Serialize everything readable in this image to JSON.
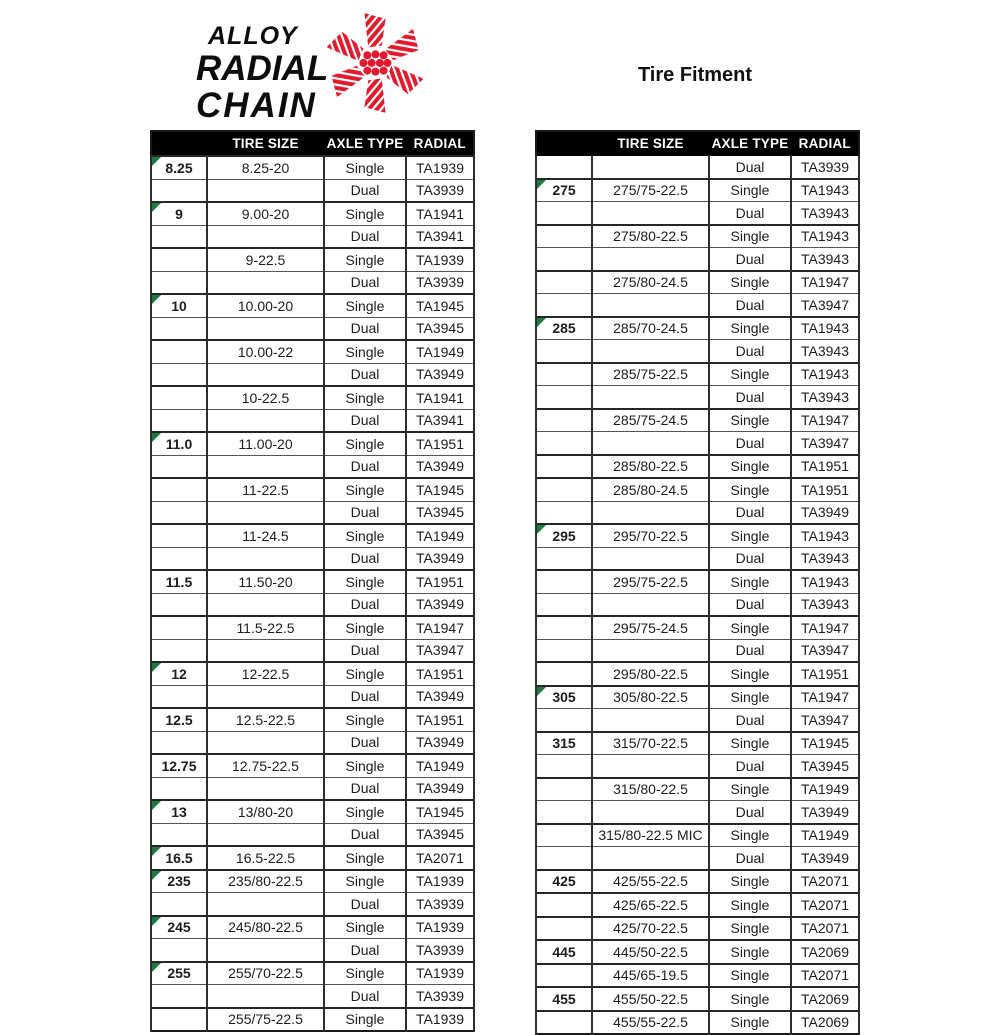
{
  "logo": {
    "line1": "ALLOY",
    "line2": "RADIAL",
    "line3": "CHAIN",
    "emblem": "chain-star-emblem"
  },
  "title": "Tire Fitment",
  "colors": {
    "header_bg": "#000000",
    "header_text": "#ffffff",
    "brand_red": "#e01b2e",
    "marker_green": "#1e7a40",
    "table_border": "#2e2e2e",
    "body_text": "#1c1c1c"
  },
  "tables": [
    {
      "id": "left",
      "headers": [
        "",
        "TIRE SIZE",
        "AXLE TYPE",
        "RADIAL"
      ],
      "rows": [
        {
          "group": "8.25",
          "tire_size": "8.25-20",
          "axle_type": "Single",
          "radial": "TA1939",
          "marker": true
        },
        {
          "group": "",
          "tire_size": "",
          "axle_type": "Dual",
          "radial": "TA3939",
          "marker": false
        },
        {
          "group": "9",
          "tire_size": "9.00-20",
          "axle_type": "Single",
          "radial": "TA1941",
          "marker": true
        },
        {
          "group": "",
          "tire_size": "",
          "axle_type": "Dual",
          "radial": "TA3941",
          "marker": false
        },
        {
          "group": "",
          "tire_size": "9-22.5",
          "axle_type": "Single",
          "radial": "TA1939",
          "marker": false
        },
        {
          "group": "",
          "tire_size": "",
          "axle_type": "Dual",
          "radial": "TA3939",
          "marker": false
        },
        {
          "group": "10",
          "tire_size": "10.00-20",
          "axle_type": "Single",
          "radial": "TA1945",
          "marker": true
        },
        {
          "group": "",
          "tire_size": "",
          "axle_type": "Dual",
          "radial": "TA3945",
          "marker": false
        },
        {
          "group": "",
          "tire_size": "10.00-22",
          "axle_type": "Single",
          "radial": "TA1949",
          "marker": false
        },
        {
          "group": "",
          "tire_size": "",
          "axle_type": "Dual",
          "radial": "TA3949",
          "marker": false
        },
        {
          "group": "",
          "tire_size": "10-22.5",
          "axle_type": "Single",
          "radial": "TA1941",
          "marker": false
        },
        {
          "group": "",
          "tire_size": "",
          "axle_type": "Dual",
          "radial": "TA3941",
          "marker": false
        },
        {
          "group": "11.0",
          "tire_size": "11.00-20",
          "axle_type": "Single",
          "radial": "TA1951",
          "marker": true
        },
        {
          "group": "",
          "tire_size": "",
          "axle_type": "Dual",
          "radial": "TA3949",
          "marker": false
        },
        {
          "group": "",
          "tire_size": "11-22.5",
          "axle_type": "Single",
          "radial": "TA1945",
          "marker": false
        },
        {
          "group": "",
          "tire_size": "",
          "axle_type": "Dual",
          "radial": "TA3945",
          "marker": false
        },
        {
          "group": "",
          "tire_size": "11-24.5",
          "axle_type": "Single",
          "radial": "TA1949",
          "marker": false
        },
        {
          "group": "",
          "tire_size": "",
          "axle_type": "Dual",
          "radial": "TA3949",
          "marker": false
        },
        {
          "group": "11.5",
          "tire_size": "11.50-20",
          "axle_type": "Single",
          "radial": "TA1951",
          "marker": false
        },
        {
          "group": "",
          "tire_size": "",
          "axle_type": "Dual",
          "radial": "TA3949",
          "marker": false
        },
        {
          "group": "",
          "tire_size": "11.5-22.5",
          "axle_type": "Single",
          "radial": "TA1947",
          "marker": false
        },
        {
          "group": "",
          "tire_size": "",
          "axle_type": "Dual",
          "radial": "TA3947",
          "marker": false
        },
        {
          "group": "12",
          "tire_size": "12-22.5",
          "axle_type": "Single",
          "radial": "TA1951",
          "marker": true
        },
        {
          "group": "",
          "tire_size": "",
          "axle_type": "Dual",
          "radial": "TA3949",
          "marker": false
        },
        {
          "group": "12.5",
          "tire_size": "12.5-22.5",
          "axle_type": "Single",
          "radial": "TA1951",
          "marker": false
        },
        {
          "group": "",
          "tire_size": "",
          "axle_type": "Dual",
          "radial": "TA3949",
          "marker": false
        },
        {
          "group": "12.75",
          "tire_size": "12.75-22.5",
          "axle_type": "Single",
          "radial": "TA1949",
          "marker": false
        },
        {
          "group": "",
          "tire_size": "",
          "axle_type": "Dual",
          "radial": "TA3949",
          "marker": false
        },
        {
          "group": "13",
          "tire_size": "13/80-20",
          "axle_type": "Single",
          "radial": "TA1945",
          "marker": true
        },
        {
          "group": "",
          "tire_size": "",
          "axle_type": "Dual",
          "radial": "TA3945",
          "marker": false
        },
        {
          "group": "16.5",
          "tire_size": "16.5-22.5",
          "axle_type": "Single",
          "radial": "TA2071",
          "marker": true
        },
        {
          "group": "235",
          "tire_size": "235/80-22.5",
          "axle_type": "Single",
          "radial": "TA1939",
          "marker": true
        },
        {
          "group": "",
          "tire_size": "",
          "axle_type": "Dual",
          "radial": "TA3939",
          "marker": false
        },
        {
          "group": "245",
          "tire_size": "245/80-22.5",
          "axle_type": "Single",
          "radial": "TA1939",
          "marker": true
        },
        {
          "group": "",
          "tire_size": "",
          "axle_type": "Dual",
          "radial": "TA3939",
          "marker": false
        },
        {
          "group": "255",
          "tire_size": "255/70-22.5",
          "axle_type": "Single",
          "radial": "TA1939",
          "marker": true
        },
        {
          "group": "",
          "tire_size": "",
          "axle_type": "Dual",
          "radial": "TA3939",
          "marker": false
        },
        {
          "group": "",
          "tire_size": "255/75-22.5",
          "axle_type": "Single",
          "radial": "TA1939",
          "marker": false
        }
      ]
    },
    {
      "id": "right",
      "headers": [
        "",
        "TIRE SIZE",
        "AXLE TYPE",
        "RADIAL"
      ],
      "rows": [
        {
          "group": "",
          "tire_size": "",
          "axle_type": "Dual",
          "radial": "TA3939",
          "marker": false
        },
        {
          "group": "275",
          "tire_size": "275/75-22.5",
          "axle_type": "Single",
          "radial": "TA1943",
          "marker": true
        },
        {
          "group": "",
          "tire_size": "",
          "axle_type": "Dual",
          "radial": "TA3943",
          "marker": false
        },
        {
          "group": "",
          "tire_size": "275/80-22.5",
          "axle_type": "Single",
          "radial": "TA1943",
          "marker": false
        },
        {
          "group": "",
          "tire_size": "",
          "axle_type": "Dual",
          "radial": "TA3943",
          "marker": false
        },
        {
          "group": "",
          "tire_size": "275/80-24.5",
          "axle_type": "Single",
          "radial": "TA1947",
          "marker": false
        },
        {
          "group": "",
          "tire_size": "",
          "axle_type": "Dual",
          "radial": "TA3947",
          "marker": false
        },
        {
          "group": "285",
          "tire_size": "285/70-24.5",
          "axle_type": "Single",
          "radial": "TA1943",
          "marker": true
        },
        {
          "group": "",
          "tire_size": "",
          "axle_type": "Dual",
          "radial": "TA3943",
          "marker": false
        },
        {
          "group": "",
          "tire_size": "285/75-22.5",
          "axle_type": "Single",
          "radial": "TA1943",
          "marker": false
        },
        {
          "group": "",
          "tire_size": "",
          "axle_type": "Dual",
          "radial": "TA3943",
          "marker": false
        },
        {
          "group": "",
          "tire_size": "285/75-24.5",
          "axle_type": "Single",
          "radial": "TA1947",
          "marker": false
        },
        {
          "group": "",
          "tire_size": "",
          "axle_type": "Dual",
          "radial": "TA3947",
          "marker": false
        },
        {
          "group": "",
          "tire_size": "285/80-22.5",
          "axle_type": "Single",
          "radial": "TA1951",
          "marker": false
        },
        {
          "group": "",
          "tire_size": "285/80-24.5",
          "axle_type": "Single",
          "radial": "TA1951",
          "marker": false
        },
        {
          "group": "",
          "tire_size": "",
          "axle_type": "Dual",
          "radial": "TA3949",
          "marker": false
        },
        {
          "group": "295",
          "tire_size": "295/70-22.5",
          "axle_type": "Single",
          "radial": "TA1943",
          "marker": true
        },
        {
          "group": "",
          "tire_size": "",
          "axle_type": "Dual",
          "radial": "TA3943",
          "marker": false
        },
        {
          "group": "",
          "tire_size": "295/75-22.5",
          "axle_type": "Single",
          "radial": "TA1943",
          "marker": false
        },
        {
          "group": "",
          "tire_size": "",
          "axle_type": "Dual",
          "radial": "TA3943",
          "marker": false
        },
        {
          "group": "",
          "tire_size": "295/75-24.5",
          "axle_type": "Single",
          "radial": "TA1947",
          "marker": false
        },
        {
          "group": "",
          "tire_size": "",
          "axle_type": "Dual",
          "radial": "TA3947",
          "marker": false
        },
        {
          "group": "",
          "tire_size": "295/80-22.5",
          "axle_type": "Single",
          "radial": "TA1951",
          "marker": false
        },
        {
          "group": "305",
          "tire_size": "305/80-22.5",
          "axle_type": "Single",
          "radial": "TA1947",
          "marker": true
        },
        {
          "group": "",
          "tire_size": "",
          "axle_type": "Dual",
          "radial": "TA3947",
          "marker": false
        },
        {
          "group": "315",
          "tire_size": "315/70-22.5",
          "axle_type": "Single",
          "radial": "TA1945",
          "marker": false
        },
        {
          "group": "",
          "tire_size": "",
          "axle_type": "Dual",
          "radial": "TA3945",
          "marker": false
        },
        {
          "group": "",
          "tire_size": "315/80-22.5",
          "axle_type": "Single",
          "radial": "TA1949",
          "marker": false
        },
        {
          "group": "",
          "tire_size": "",
          "axle_type": "Dual",
          "radial": "TA3949",
          "marker": false
        },
        {
          "group": "",
          "tire_size": "315/80-22.5 MIC",
          "axle_type": "Single",
          "radial": "TA1949",
          "marker": false
        },
        {
          "group": "",
          "tire_size": "",
          "axle_type": "Dual",
          "radial": "TA3949",
          "marker": false
        },
        {
          "group": "425",
          "tire_size": "425/55-22.5",
          "axle_type": "Single",
          "radial": "TA2071",
          "marker": false
        },
        {
          "group": "",
          "tire_size": "425/65-22.5",
          "axle_type": "Single",
          "radial": "TA2071",
          "marker": false
        },
        {
          "group": "",
          "tire_size": "425/70-22.5",
          "axle_type": "Single",
          "radial": "TA2071",
          "marker": false
        },
        {
          "group": "445",
          "tire_size": "445/50-22.5",
          "axle_type": "Single",
          "radial": "TA2069",
          "marker": false
        },
        {
          "group": "",
          "tire_size": "445/65-19.5",
          "axle_type": "Single",
          "radial": "TA2071",
          "marker": false
        },
        {
          "group": "455",
          "tire_size": "455/50-22.5",
          "axle_type": "Single",
          "radial": "TA2069",
          "marker": false
        },
        {
          "group": "",
          "tire_size": "455/55-22.5",
          "axle_type": "Single",
          "radial": "TA2069",
          "marker": false
        }
      ]
    }
  ]
}
